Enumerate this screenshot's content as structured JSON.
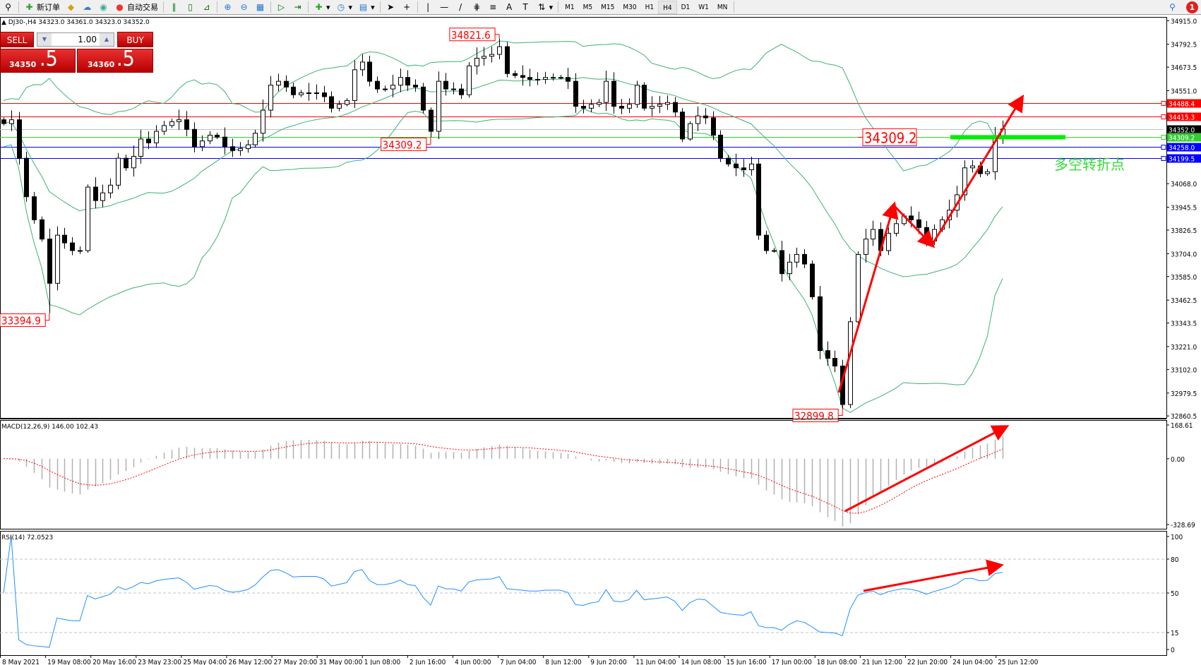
{
  "toolbar": {
    "new_order_label": "新订单",
    "auto_trading_label": "自动交易",
    "timeframes": [
      "M1",
      "M5",
      "M15",
      "M30",
      "H1",
      "H4",
      "D1",
      "W1",
      "MN"
    ],
    "active_timeframe": "H4",
    "notification_count": "1"
  },
  "symbol_header": "DJ30-,H4  34323.0 34361.0 34323.0 34352.0",
  "trade_panel": {
    "sell_label": "SELL",
    "buy_label": "BUY",
    "lot_value": "1.00",
    "sell_price_main": "34350",
    "sell_price_big": ".5",
    "buy_price_main": "34360",
    "buy_price_big": ".5"
  },
  "colors": {
    "bollinger": "#3cb371",
    "resistance": "#ff0000",
    "support": "#0000ff",
    "pivot": "#32cd32",
    "bid": "#c0c0c0",
    "rsi": "#1e90ff",
    "annotation_arrow": "#ff0000",
    "annotation_text": "#33dd33"
  },
  "chart_data": [
    {
      "type": "candlestick",
      "title": "DJ30-,H4",
      "ylim": [
        32860.5,
        34915.0
      ],
      "y_ticks": [
        "34915.0",
        "34792.5",
        "34673.5",
        "34551.0",
        "34068.0",
        "33945.5",
        "33826.5",
        "33704.0",
        "33585.0",
        "33462.5",
        "33343.5",
        "33221.0",
        "33102.0",
        "32979.5",
        "32860.5"
      ],
      "x_ticks": [
        "8 May 2021",
        "19 May 08:00",
        "20 May 16:00",
        "23 May 23:00",
        "25 May 04:00",
        "26 May 12:00",
        "27 May 20:00",
        "31 May 00:00",
        "1 Jun 08:00",
        "2 Jun 16:00",
        "4 Jun 00:00",
        "7 Jun 04:00",
        "8 Jun 12:00",
        "9 Jun 20:00",
        "11 Jun 04:00",
        "14 Jun 08:00",
        "15 Jun 16:00",
        "17 Jun 00:00",
        "18 Jun 08:00",
        "21 Jun 12:00",
        "22 Jun 20:00",
        "24 Jun 04:00",
        "25 Jun 12:00"
      ],
      "closes": [
        34380,
        34400,
        34200,
        34000,
        33880,
        33780,
        33550,
        33800,
        33760,
        33720,
        33720,
        34050,
        33980,
        34020,
        34060,
        34200,
        34150,
        34210,
        34300,
        34280,
        34340,
        34370,
        34390,
        34400,
        34350,
        34260,
        34290,
        34320,
        34310,
        34260,
        34240,
        34250,
        34270,
        34330,
        34450,
        34580,
        34600,
        34570,
        34530,
        34540,
        34540,
        34540,
        34520,
        34460,
        34480,
        34500,
        34660,
        34700,
        34600,
        34560,
        34560,
        34580,
        34620,
        34580,
        34570,
        34450,
        34340,
        34600,
        34560,
        34560,
        34530,
        34680,
        34720,
        34730,
        34740,
        34780,
        34640,
        34630,
        34620,
        34610,
        34610,
        34620,
        34620,
        34620,
        34600,
        34470,
        34460,
        34480,
        34490,
        34600,
        34470,
        34460,
        34480,
        34580,
        34460,
        34470,
        34480,
        34490,
        34440,
        34300,
        34380,
        34420,
        34410,
        34320,
        34200,
        34170,
        34150,
        34140,
        34170,
        33800,
        33720,
        33720,
        33600,
        33660,
        33700,
        33650,
        33480,
        33200,
        33160,
        33120,
        32920,
        33350,
        33700,
        33780,
        33830,
        33720,
        33810,
        33860,
        33900,
        33880,
        33840,
        33770,
        33830,
        33880,
        33930,
        34010,
        34150,
        34160,
        34120,
        34130,
        34310,
        34352
      ],
      "extremes": [
        {
          "label": "33394.9",
          "value": 33394.9,
          "bar": 6,
          "kind": "low"
        },
        {
          "label": "34821.6",
          "value": 34821.6,
          "bar": 65,
          "kind": "high"
        },
        {
          "label": "34309.2",
          "value": 34309.2,
          "bar": 56,
          "kind": "low"
        },
        {
          "label": "32899.8",
          "value": 32899.8,
          "bar": 110,
          "kind": "low"
        }
      ],
      "horizontal_lines": [
        {
          "label": "34488.4",
          "value": 34488.4,
          "color": "#ff0000"
        },
        {
          "label": "34415.3",
          "value": 34415.3,
          "color": "#ff0000"
        },
        {
          "label": "34352.0",
          "value": 34352.0,
          "color": "#000000",
          "line": "#c0c0c0"
        },
        {
          "label": "34309.2",
          "value": 34309.2,
          "color": "#33cc33"
        },
        {
          "label": "34258.0",
          "value": 34258.0,
          "color": "#0000ff"
        },
        {
          "label": "34199.5",
          "value": 34199.5,
          "color": "#0000ff"
        }
      ],
      "pivot_label": "34309.2",
      "pivot_value": 34309.2,
      "annotation_text": "多空转折点",
      "indicator": "Bollinger Bands (20, 2)"
    },
    {
      "type": "histogram+line",
      "title": "MACD(12,26,9) 146.00 102.43",
      "ylim": [
        -328.69,
        168.61
      ],
      "y_ticks": [
        "168.61",
        "0.00",
        "-328.69"
      ]
    },
    {
      "type": "line",
      "title": "RSI(14) 72.0523",
      "ylim": [
        0,
        100
      ],
      "levels": [
        80,
        50,
        15
      ],
      "y_ticks": [
        "100",
        "80",
        "50",
        "15",
        "0"
      ]
    }
  ]
}
